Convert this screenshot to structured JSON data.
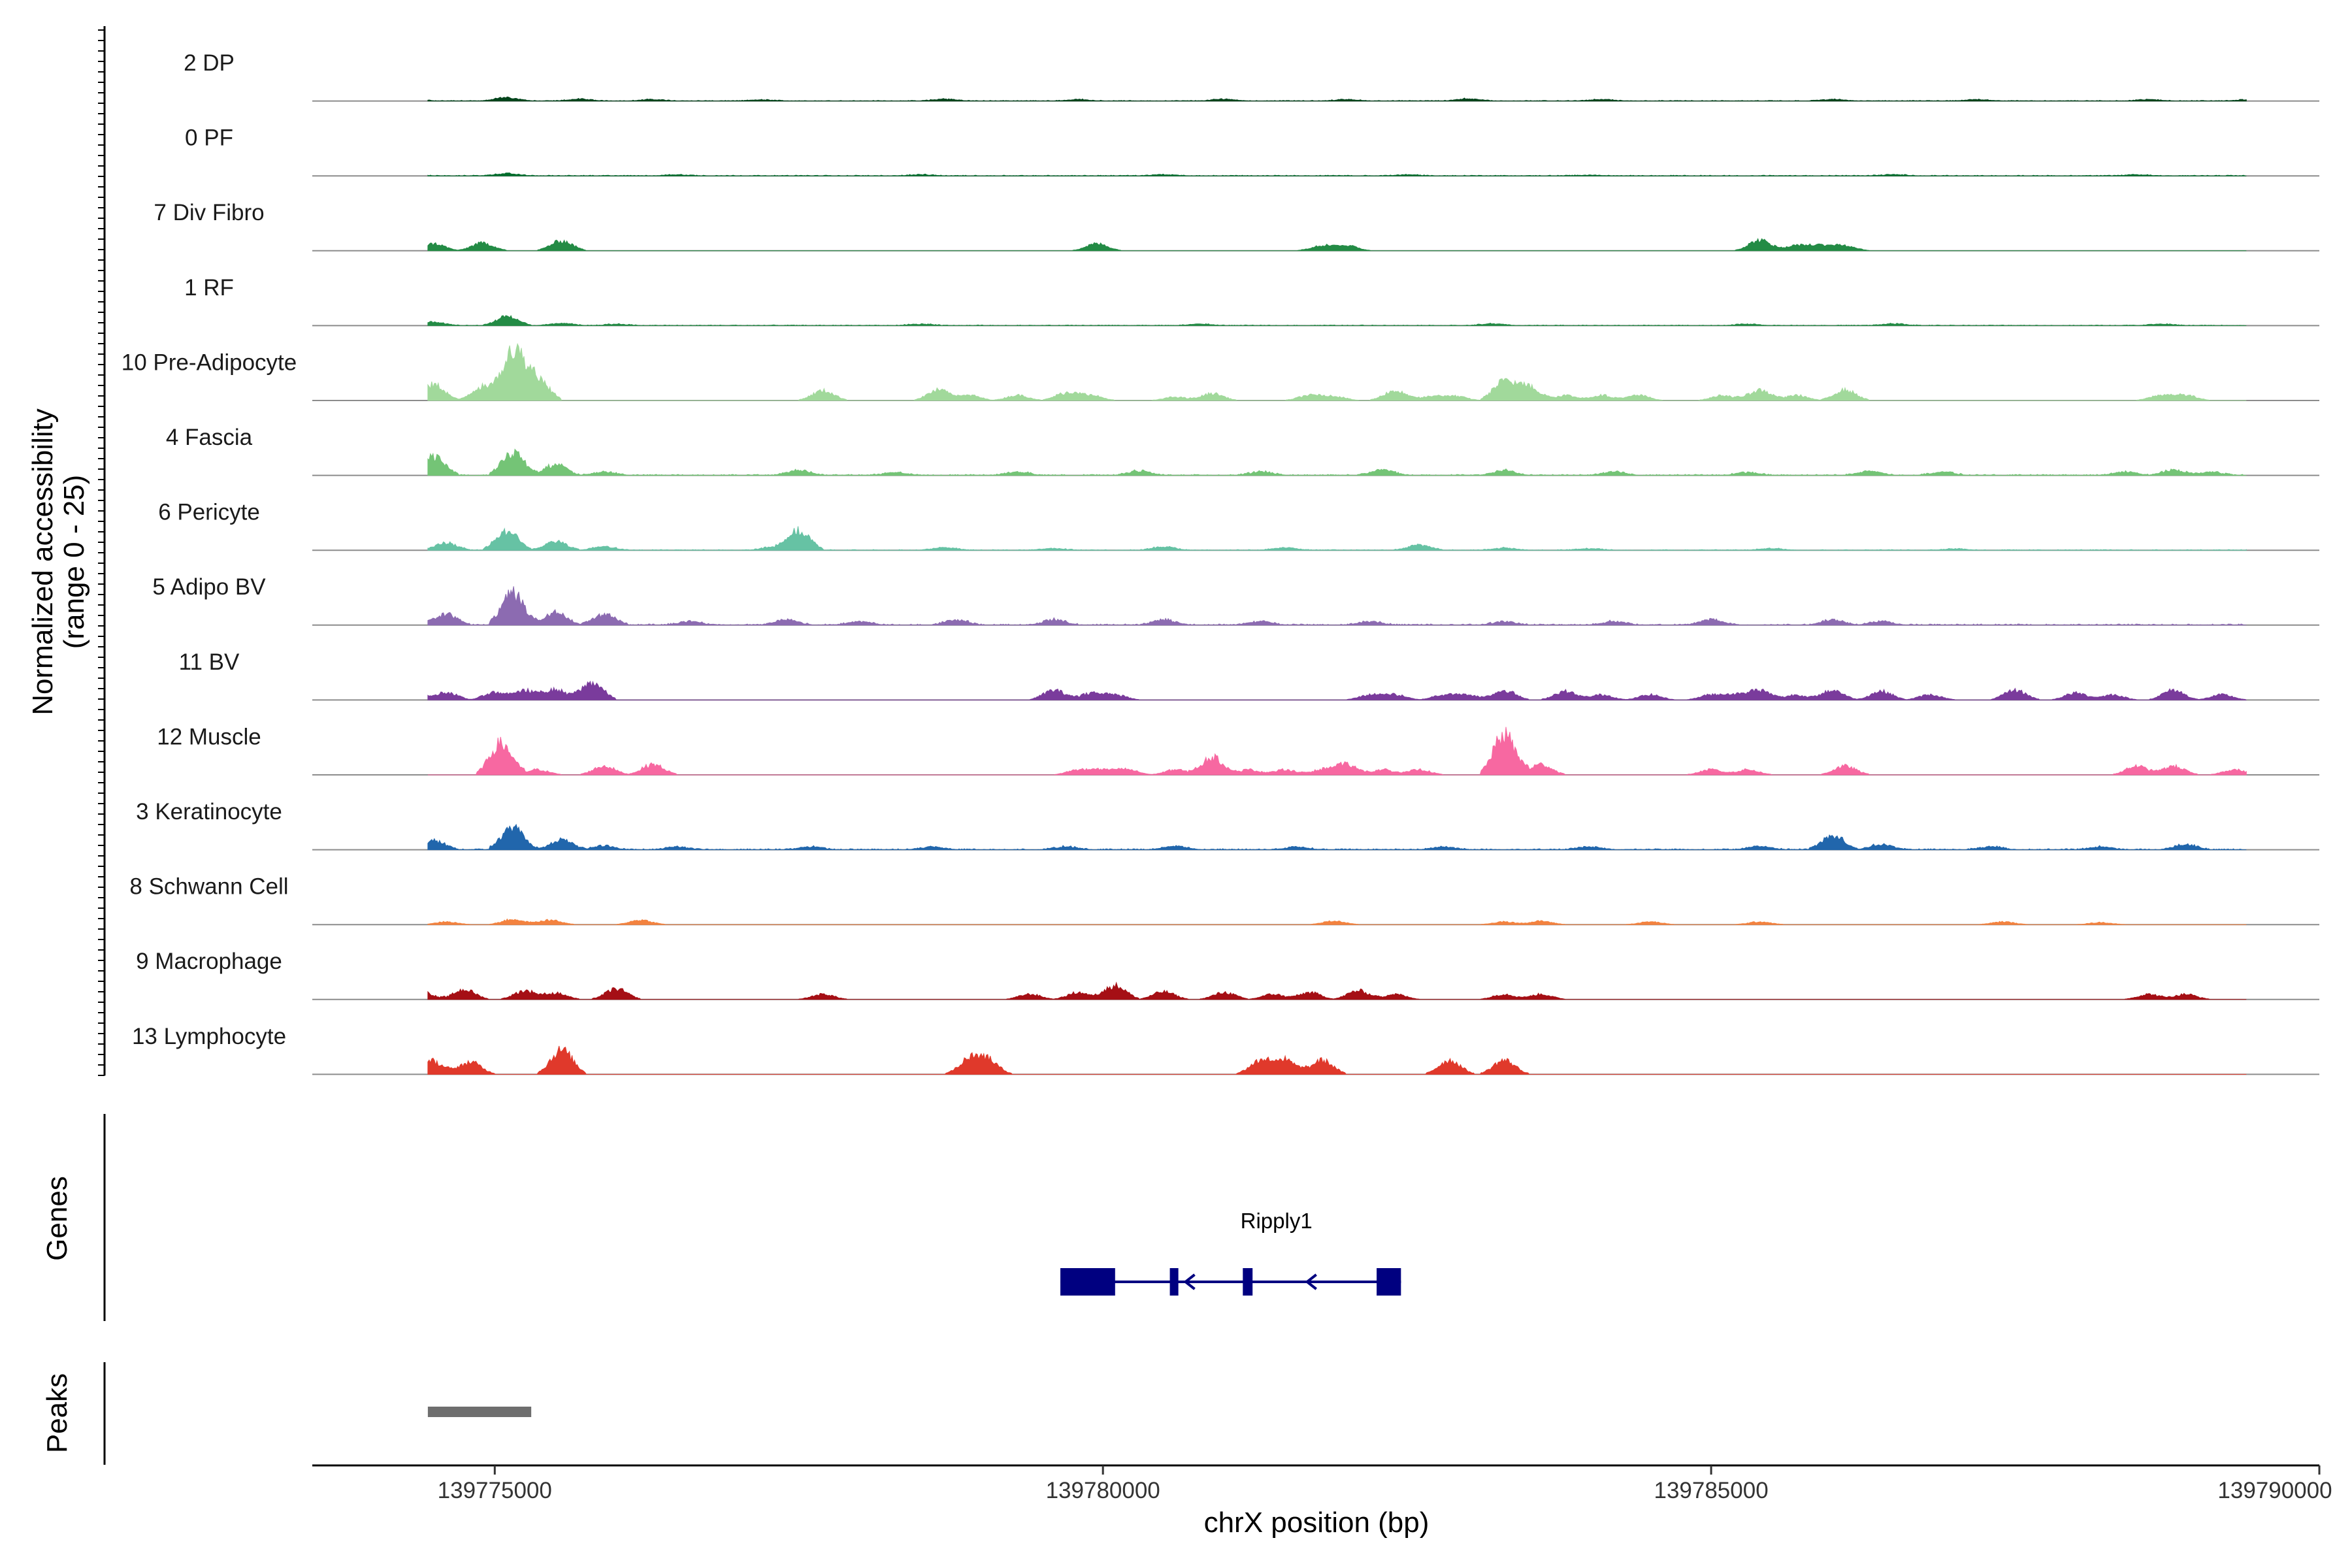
{
  "chart_data": {
    "type": "area",
    "chromosome": "chrX",
    "xlabel": "chrX position (bp)",
    "ylabel_line1": "Normalized accessibility",
    "ylabel_line2": "(range 0 - 25)",
    "xlim": [
      139773500,
      139790000
    ],
    "ylim": [
      0,
      25
    ],
    "x_ticks": [
      139775000,
      139780000,
      139785000,
      139790000
    ],
    "x_tick_labels": [
      "139775000",
      "139780000",
      "139785000",
      "139790000"
    ],
    "genes_label": "Genes",
    "peaks_label": "Peaks",
    "tracks": [
      {
        "name": "2 DP",
        "color": "#00441b",
        "peaks": [
          [
            139774300,
            0.7
          ],
          [
            139775100,
            1.0
          ],
          [
            139775700,
            0.5
          ],
          [
            139776300,
            0.4
          ],
          [
            139777200,
            0.3
          ],
          [
            139778700,
            0.5
          ],
          [
            139779800,
            0.4
          ],
          [
            139781000,
            0.5
          ],
          [
            139782000,
            0.4
          ],
          [
            139783000,
            0.6
          ],
          [
            139784100,
            0.4
          ],
          [
            139786000,
            0.4
          ],
          [
            139787200,
            0.4
          ],
          [
            139788600,
            0.4
          ],
          [
            139789400,
            0.3
          ]
        ],
        "noise": 0.18
      },
      {
        "name": "0 PF",
        "color": "#006d2c",
        "peaks": [
          [
            139774300,
            0.3
          ],
          [
            139775100,
            0.6
          ],
          [
            139776500,
            0.3
          ],
          [
            139778500,
            0.3
          ],
          [
            139780500,
            0.3
          ],
          [
            139782500,
            0.3
          ],
          [
            139784000,
            0.2
          ],
          [
            139786500,
            0.3
          ],
          [
            139788500,
            0.3
          ]
        ],
        "noise": 0.2
      },
      {
        "name": "7 Div Fibro",
        "color": "#238b45",
        "peaks": [
          [
            139774500,
            2.0
          ],
          [
            139774900,
            2.2
          ],
          [
            139775550,
            2.8
          ],
          [
            139779950,
            2.0
          ],
          [
            139781800,
            1.5
          ],
          [
            139782000,
            1.5
          ],
          [
            139785400,
            3.0
          ],
          [
            139785700,
            1.5
          ],
          [
            139785900,
            1.5
          ],
          [
            139786100,
            1.5
          ]
        ],
        "noise": 0.0
      },
      {
        "name": "1 RF",
        "color": "#238b45",
        "peaks": [
          [
            139774500,
            1.0
          ],
          [
            139775100,
            2.5
          ],
          [
            139775550,
            0.6
          ],
          [
            139776000,
            0.4
          ],
          [
            139778500,
            0.4
          ],
          [
            139780800,
            0.4
          ],
          [
            139783200,
            0.5
          ],
          [
            139785300,
            0.4
          ],
          [
            139786500,
            0.5
          ],
          [
            139788700,
            0.4
          ]
        ],
        "noise": 0.2
      },
      {
        "name": "10 Pre-Adipocyte",
        "color": "#a1d99b",
        "peaks": [
          [
            139774500,
            4.5
          ],
          [
            139774900,
            4.0
          ],
          [
            139775150,
            14.5
          ],
          [
            139775350,
            6.5
          ],
          [
            139777700,
            2.8
          ],
          [
            139778650,
            3.0
          ],
          [
            139778900,
            1.5
          ],
          [
            139779300,
            1.5
          ],
          [
            139779700,
            2.2
          ],
          [
            139779900,
            1.5
          ],
          [
            139780600,
            1.0
          ],
          [
            139780900,
            2.0
          ],
          [
            139781700,
            1.5
          ],
          [
            139781900,
            1.2
          ],
          [
            139782400,
            2.8
          ],
          [
            139782700,
            1.2
          ],
          [
            139782900,
            1.2
          ],
          [
            139783300,
            5.5
          ],
          [
            139783500,
            4.0
          ],
          [
            139783800,
            1.5
          ],
          [
            139784100,
            1.5
          ],
          [
            139784400,
            1.5
          ],
          [
            139785100,
            1.5
          ],
          [
            139785400,
            3.0
          ],
          [
            139785700,
            1.5
          ],
          [
            139786100,
            3.0
          ],
          [
            139788700,
            1.5
          ],
          [
            139788900,
            1.5
          ]
        ],
        "noise": 0.0
      },
      {
        "name": "4 Fascia",
        "color": "#74c476",
        "peaks": [
          [
            139774500,
            5.5
          ],
          [
            139775150,
            6.5
          ],
          [
            139775500,
            3.0
          ],
          [
            139775900,
            1.0
          ],
          [
            139777500,
            1.5
          ],
          [
            139778300,
            0.8
          ],
          [
            139779300,
            1.0
          ],
          [
            139780300,
            1.2
          ],
          [
            139781300,
            1.0
          ],
          [
            139782300,
            1.5
          ],
          [
            139783300,
            1.3
          ],
          [
            139784200,
            1.0
          ],
          [
            139785300,
            0.8
          ],
          [
            139786300,
            1.2
          ],
          [
            139786900,
            1.0
          ],
          [
            139788400,
            1.0
          ],
          [
            139788800,
            1.5
          ],
          [
            139789100,
            1.0
          ]
        ],
        "noise": 0.3
      },
      {
        "name": "6 Pericyte",
        "color": "#66c2a4",
        "peaks": [
          [
            139774600,
            2.0
          ],
          [
            139775100,
            5.5
          ],
          [
            139775500,
            2.5
          ],
          [
            139775900,
            1.0
          ],
          [
            139777500,
            5.5
          ],
          [
            139777300,
            1.0
          ],
          [
            139778700,
            0.7
          ],
          [
            139779600,
            0.5
          ],
          [
            139780500,
            1.0
          ],
          [
            139781500,
            0.8
          ],
          [
            139782600,
            1.5
          ],
          [
            139783300,
            0.6
          ],
          [
            139784000,
            0.4
          ],
          [
            139785500,
            0.5
          ],
          [
            139787000,
            0.4
          ]
        ],
        "noise": 0.2
      },
      {
        "name": "5 Adipo BV",
        "color": "#8c6bb1",
        "peaks": [
          [
            139774300,
            2.5
          ],
          [
            139774600,
            3.0
          ],
          [
            139775150,
            9.0
          ],
          [
            139775500,
            3.5
          ],
          [
            139775900,
            3.0
          ],
          [
            139776600,
            1.0
          ],
          [
            139777400,
            1.5
          ],
          [
            139778000,
            1.0
          ],
          [
            139778800,
            1.5
          ],
          [
            139779600,
            1.5
          ],
          [
            139780500,
            1.5
          ],
          [
            139781300,
            1.0
          ],
          [
            139782200,
            1.0
          ],
          [
            139783300,
            1.0
          ],
          [
            139784200,
            1.0
          ],
          [
            139785000,
            1.5
          ],
          [
            139786000,
            1.5
          ],
          [
            139786400,
            1.0
          ]
        ],
        "noise": 0.35
      },
      {
        "name": "11 BV",
        "color": "#7a3b9c",
        "peaks": [
          [
            139774300,
            2.8
          ],
          [
            139774600,
            2.2
          ],
          [
            139775000,
            2.2
          ],
          [
            139775250,
            2.8
          ],
          [
            139775500,
            3.0
          ],
          [
            139775800,
            5.0
          ],
          [
            139779600,
            2.8
          ],
          [
            139779900,
            2.0
          ],
          [
            139780100,
            1.5
          ],
          [
            139782200,
            1.5
          ],
          [
            139782400,
            1.5
          ],
          [
            139782800,
            1.5
          ],
          [
            139783000,
            1.5
          ],
          [
            139783300,
            2.8
          ],
          [
            139783800,
            2.5
          ],
          [
            139784100,
            1.5
          ],
          [
            139784500,
            1.5
          ],
          [
            139785000,
            1.5
          ],
          [
            139785200,
            1.5
          ],
          [
            139785400,
            2.8
          ],
          [
            139785700,
            1.5
          ],
          [
            139786000,
            2.8
          ],
          [
            139786400,
            2.5
          ],
          [
            139786800,
            1.5
          ],
          [
            139787500,
            2.8
          ],
          [
            139788000,
            2.0
          ],
          [
            139788300,
            1.5
          ],
          [
            139788800,
            2.8
          ],
          [
            139789200,
            1.5
          ]
        ],
        "noise": 0.0
      },
      {
        "name": "12 Muscle",
        "color": "#f768a1",
        "peaks": [
          [
            139775050,
            9.0
          ],
          [
            139775350,
            1.5
          ],
          [
            139775900,
            2.5
          ],
          [
            139776300,
            3.0
          ],
          [
            139779800,
            1.5
          ],
          [
            139780000,
            1.5
          ],
          [
            139780200,
            1.5
          ],
          [
            139780600,
            1.5
          ],
          [
            139780900,
            5.0
          ],
          [
            139781200,
            1.5
          ],
          [
            139781500,
            1.5
          ],
          [
            139781800,
            1.5
          ],
          [
            139782000,
            3.0
          ],
          [
            139782300,
            1.5
          ],
          [
            139782600,
            1.5
          ],
          [
            139783300,
            11.5
          ],
          [
            139783600,
            3.0
          ],
          [
            139785000,
            1.5
          ],
          [
            139785300,
            1.5
          ],
          [
            139786100,
            2.5
          ],
          [
            139788500,
            2.5
          ],
          [
            139788800,
            2.5
          ],
          [
            139789300,
            1.5
          ]
        ],
        "noise": 0.0
      },
      {
        "name": "3 Keratinocyte",
        "color": "#2166ac",
        "peaks": [
          [
            139774500,
            2.5
          ],
          [
            139775150,
            6.5
          ],
          [
            139775550,
            2.8
          ],
          [
            139775900,
            1.0
          ],
          [
            139776500,
            0.8
          ],
          [
            139777600,
            0.8
          ],
          [
            139778600,
            0.8
          ],
          [
            139779700,
            0.8
          ],
          [
            139780600,
            1.0
          ],
          [
            139781600,
            0.8
          ],
          [
            139782800,
            0.8
          ],
          [
            139784000,
            0.8
          ],
          [
            139785400,
            1.0
          ],
          [
            139786000,
            4.0
          ],
          [
            139786400,
            1.5
          ],
          [
            139787300,
            0.8
          ],
          [
            139788200,
            0.8
          ],
          [
            139788900,
            1.5
          ]
        ],
        "noise": 0.3
      },
      {
        "name": "8 Schwann Cell",
        "color": "#f3823f",
        "peaks": [
          [
            139774600,
            0.8
          ],
          [
            139775150,
            1.5
          ],
          [
            139775450,
            1.3
          ],
          [
            139776200,
            1.3
          ],
          [
            139781900,
            1.0
          ],
          [
            139783300,
            0.8
          ],
          [
            139783600,
            1.0
          ],
          [
            139784500,
            0.8
          ],
          [
            139785400,
            0.8
          ],
          [
            139787400,
            0.8
          ],
          [
            139788200,
            0.6
          ]
        ],
        "noise": 0.0
      },
      {
        "name": "9 Macrophage",
        "color": "#a50f15",
        "peaks": [
          [
            139774400,
            2.2
          ],
          [
            139774750,
            2.8
          ],
          [
            139775250,
            2.5
          ],
          [
            139775500,
            1.8
          ],
          [
            139776000,
            3.0
          ],
          [
            139777700,
            1.5
          ],
          [
            139779400,
            1.5
          ],
          [
            139779800,
            2.0
          ],
          [
            139780100,
            4.0
          ],
          [
            139780500,
            2.2
          ],
          [
            139781000,
            2.0
          ],
          [
            139781400,
            1.5
          ],
          [
            139781700,
            2.0
          ],
          [
            139782100,
            2.5
          ],
          [
            139782400,
            1.5
          ],
          [
            139783300,
            1.5
          ],
          [
            139783600,
            1.5
          ],
          [
            139788600,
            1.5
          ],
          [
            139788900,
            1.5
          ]
        ],
        "noise": 0.0
      },
      {
        "name": "13 Lymphocyte",
        "color": "#e0392b",
        "peaks": [
          [
            139774300,
            3.5
          ],
          [
            139774500,
            3.5
          ],
          [
            139774800,
            3.5
          ],
          [
            139775550,
            7.0
          ],
          [
            139778900,
            4.0
          ],
          [
            139779050,
            4.0
          ],
          [
            139781300,
            4.0
          ],
          [
            139781500,
            4.0
          ],
          [
            139781800,
            4.0
          ],
          [
            139782850,
            4.0
          ],
          [
            139783300,
            4.0
          ]
        ],
        "noise": 0.0
      }
    ],
    "genes": [
      {
        "name": "Ripply1",
        "strand": "-",
        "start": 139779650,
        "end": 139782450,
        "exons": [
          [
            139779650,
            139780100
          ],
          [
            139780550,
            139780620
          ],
          [
            139781150,
            139781230
          ],
          [
            139782250,
            139782450
          ]
        ],
        "color": "#000080"
      }
    ],
    "peak_regions": [
      [
        139774450,
        139775300
      ]
    ],
    "peak_color": "#6e6e6e"
  }
}
